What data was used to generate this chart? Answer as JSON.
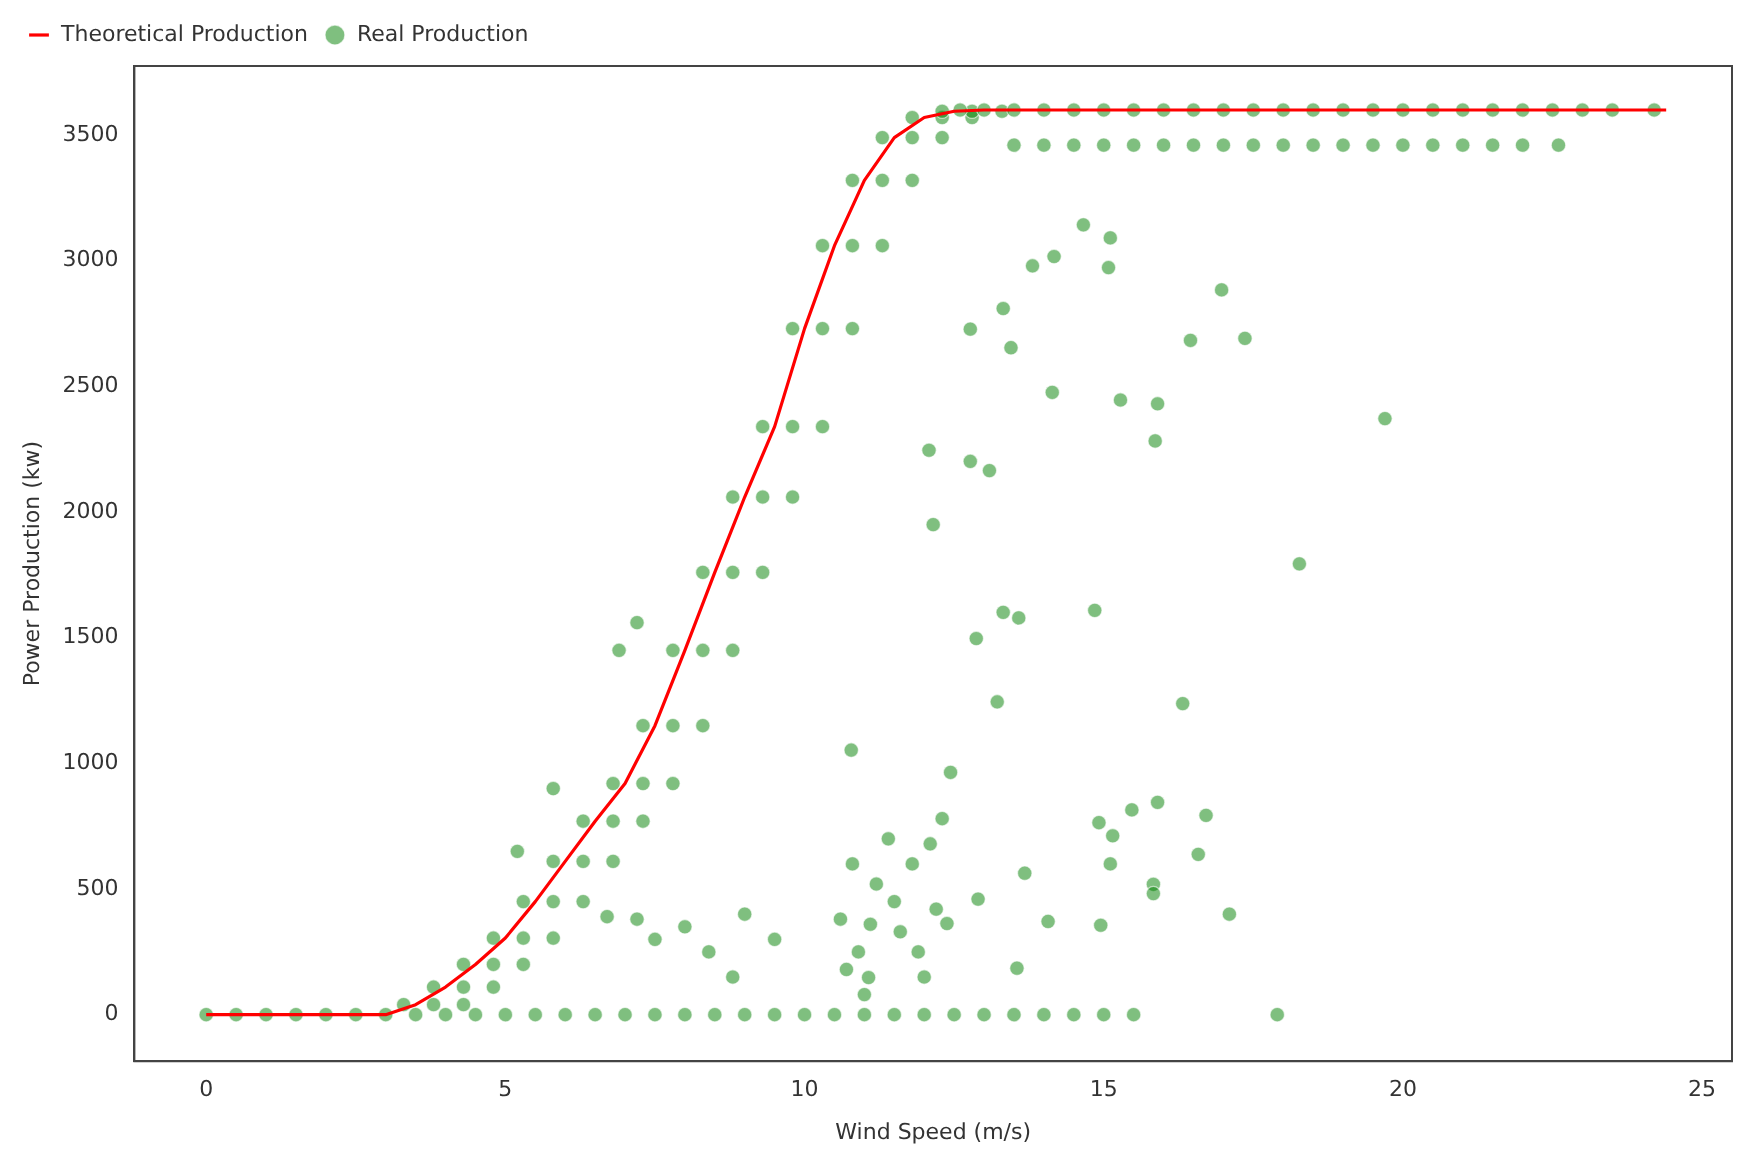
{
  "chart_data": {
    "type": "scatter",
    "xlabel": "Wind Speed (m/s)",
    "ylabel": "Power Production (kw)",
    "xlim": [
      -1.2,
      25.5
    ],
    "xticks": [
      0,
      5,
      10,
      15,
      20,
      25
    ],
    "ylim": [
      -185,
      3775
    ],
    "yticks": [
      0,
      500,
      1000,
      1500,
      2000,
      2500,
      3000,
      3500
    ],
    "grid": false,
    "legend": "top left",
    "series": [
      {
        "name": "Theoretical Production",
        "type": "line",
        "color": "#ff0000",
        "marker": "none",
        "line_style": "solid",
        "x": [
          0,
          3,
          3.5,
          4,
          4.5,
          5,
          5.5,
          6,
          6.5,
          7,
          7.5,
          8,
          8.5,
          9,
          9.5,
          10,
          10.5,
          11,
          11.5,
          12,
          12.5,
          13,
          24.4
        ],
        "values": [
          0,
          0,
          40,
          110,
          200,
          305,
          450,
          610,
          770,
          920,
          1150,
          1450,
          1760,
          2060,
          2340,
          2730,
          3060,
          3320,
          3490,
          3570,
          3595,
          3600,
          3600
        ]
      },
      {
        "name": "Real Production",
        "color": "#008000",
        "marker": "circle",
        "x": [
          3.3,
          3.8,
          4.3,
          3.8,
          4.3,
          4.8,
          4.3,
          4.8,
          5.3,
          4.8,
          5.3,
          5.8,
          5.3,
          5.8,
          6.3,
          5.8,
          6.3,
          6.8,
          6.3,
          6.8,
          7.3,
          6.8,
          7.3,
          7.8,
          7.3,
          7.8,
          8.3,
          7.8,
          8.3,
          8.8,
          8.3,
          8.8,
          9.3,
          8.8,
          9.3,
          9.8,
          9.3,
          9.8,
          10.3,
          9.8,
          10.3,
          10.8,
          10.3,
          10.8,
          11.3,
          10.8,
          11.3,
          11.8,
          11.3,
          11.8,
          12.3,
          11.8,
          12.3,
          12.8,
          12.3,
          12.8,
          13.3,
          12.6,
          13,
          13.5,
          14,
          14.5,
          15,
          15.5,
          16,
          16.5,
          17,
          17.5,
          18,
          18.5,
          19,
          19.5,
          20,
          20.5,
          21,
          21.5,
          22,
          22.5,
          23,
          23.5,
          24.2,
          13.5,
          14,
          14.5,
          15,
          15.5,
          16,
          16.5,
          17,
          17.5,
          18,
          18.5,
          19,
          19.5,
          20,
          20.5,
          21,
          21.5,
          22,
          22.6,
          0,
          0.5,
          1,
          1.5,
          2,
          2.5,
          3,
          3.5,
          4,
          4.5,
          5,
          5.5,
          6,
          6.5,
          7,
          7.5,
          8,
          8.5,
          9,
          9.5,
          10,
          10.5,
          11,
          11.5,
          12,
          12.5,
          13,
          13.5,
          14,
          14.5,
          15,
          15.5,
          17.9,
          16.97,
          17.36,
          16.45,
          19.7,
          18.27,
          14.66,
          15.11,
          14.17,
          13.81,
          15.08,
          13.32,
          12.77,
          13.45,
          14.14,
          15.28,
          15.9,
          15.86,
          12.08,
          12.77,
          13.09,
          12.15,
          14.85,
          13.32,
          13.58,
          12.87,
          13.22,
          16.32,
          12.44,
          10.78,
          15.9,
          15.47,
          16.71,
          14.92,
          15.15,
          15.11,
          16.58,
          15.83,
          15.83,
          17.1,
          13.68,
          12.9,
          12.38,
          14.07,
          14.95,
          13.55,
          11.07,
          10.6,
          10.9,
          11.2,
          11.4,
          11.6,
          11.8,
          12.0,
          12.2,
          10.8,
          11.0,
          11.5,
          12.3,
          11.1,
          11.9,
          12.1,
          10.7,
          6.7,
          7.2,
          7.5,
          8.0,
          8.4,
          9.0,
          9.5,
          8.8,
          7.2,
          6.9,
          5.8,
          5.2
        ],
        "values": [
          40,
          40,
          40,
          110,
          110,
          110,
          200,
          200,
          200,
          305,
          305,
          305,
          450,
          450,
          450,
          610,
          610,
          610,
          770,
          770,
          770,
          920,
          920,
          920,
          1150,
          1150,
          1150,
          1450,
          1450,
          1450,
          1760,
          1760,
          1760,
          2060,
          2060,
          2060,
          2340,
          2340,
          2340,
          2730,
          2730,
          2730,
          3060,
          3060,
          3060,
          3320,
          3320,
          3320,
          3490,
          3490,
          3490,
          3570,
          3570,
          3570,
          3595,
          3595,
          3595,
          3600,
          3600,
          3600,
          3600,
          3600,
          3600,
          3600,
          3600,
          3600,
          3600,
          3600,
          3600,
          3600,
          3600,
          3600,
          3600,
          3600,
          3600,
          3600,
          3600,
          3600,
          3600,
          3600,
          3600,
          3460,
          3460,
          3460,
          3460,
          3460,
          3460,
          3460,
          3460,
          3460,
          3460,
          3460,
          3460,
          3460,
          3460,
          3460,
          3460,
          3460,
          3460,
          3460,
          0,
          0,
          0,
          0,
          0,
          0,
          0,
          0,
          0,
          0,
          0,
          0,
          0,
          0,
          0,
          0,
          0,
          0,
          0,
          0,
          0,
          0,
          0,
          0,
          0,
          0,
          0,
          0,
          0,
          0,
          0,
          0,
          0,
          2884,
          2691,
          2683,
          2372,
          1794,
          3143,
          3091,
          3017,
          2980,
          2973,
          2810,
          2728,
          2654,
          2476,
          2446,
          2431,
          2283,
          2246,
          2202,
          2165,
          1950,
          1609,
          1601,
          1579,
          1497,
          1245,
          1238,
          964,
          1053,
          845,
          815,
          793,
          764,
          712,
          600,
          638,
          519,
          482,
          400,
          563,
          460,
          363,
          371,
          356,
          185,
          148,
          380,
          250,
          520,
          700,
          330,
          600,
          150,
          420,
          600,
          80,
          450,
          780,
          360,
          250,
          680,
          180,
          390,
          380,
          300,
          350,
          250,
          400,
          300,
          150,
          1560,
          1450,
          900,
          650
        ]
      }
    ]
  }
}
